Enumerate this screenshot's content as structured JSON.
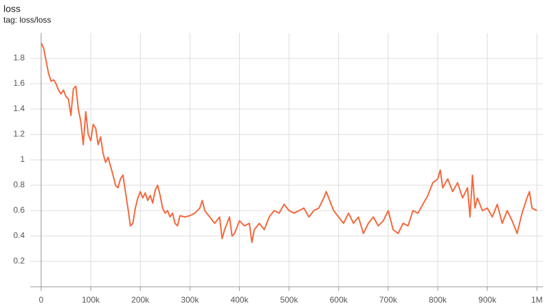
{
  "chart_data": {
    "type": "line",
    "title": "loss",
    "subtitle": "tag: loss/loss",
    "x": [
      0,
      5000,
      10000,
      15000,
      20000,
      25000,
      30000,
      35000,
      40000,
      45000,
      50000,
      55000,
      60000,
      65000,
      70000,
      75000,
      80000,
      85000,
      90000,
      95000,
      100000,
      105000,
      110000,
      115000,
      120000,
      125000,
      130000,
      135000,
      140000,
      145000,
      150000,
      155000,
      160000,
      165000,
      170000,
      175000,
      180000,
      185000,
      190000,
      195000,
      200000,
      205000,
      210000,
      215000,
      220000,
      225000,
      230000,
      235000,
      240000,
      245000,
      250000,
      255000,
      260000,
      265000,
      270000,
      275000,
      280000,
      290000,
      300000,
      310000,
      320000,
      325000,
      330000,
      340000,
      350000,
      360000,
      365000,
      370000,
      375000,
      380000,
      385000,
      390000,
      400000,
      410000,
      420000,
      425000,
      430000,
      440000,
      450000,
      460000,
      470000,
      480000,
      490000,
      500000,
      510000,
      520000,
      530000,
      540000,
      550000,
      560000,
      570000,
      575000,
      580000,
      590000,
      600000,
      610000,
      620000,
      630000,
      640000,
      650000,
      660000,
      670000,
      680000,
      690000,
      700000,
      710000,
      720000,
      730000,
      740000,
      750000,
      760000,
      770000,
      780000,
      790000,
      800000,
      805000,
      810000,
      820000,
      830000,
      840000,
      850000,
      860000,
      865000,
      870000,
      875000,
      880000,
      890000,
      900000,
      910000,
      920000,
      930000,
      940000,
      950000,
      960000,
      970000,
      980000,
      985000,
      990000,
      1000000
    ],
    "series": [
      {
        "color": "#f4683c",
        "values": [
          1.92,
          1.88,
          1.78,
          1.68,
          1.62,
          1.63,
          1.6,
          1.55,
          1.52,
          1.55,
          1.5,
          1.48,
          1.35,
          1.56,
          1.58,
          1.4,
          1.3,
          1.12,
          1.38,
          1.2,
          1.15,
          1.28,
          1.25,
          1.12,
          1.18,
          1.05,
          0.98,
          1.02,
          0.95,
          0.88,
          0.8,
          0.78,
          0.85,
          0.88,
          0.75,
          0.62,
          0.48,
          0.5,
          0.62,
          0.7,
          0.75,
          0.7,
          0.74,
          0.68,
          0.72,
          0.66,
          0.76,
          0.8,
          0.72,
          0.62,
          0.58,
          0.6,
          0.55,
          0.58,
          0.5,
          0.48,
          0.56,
          0.55,
          0.56,
          0.58,
          0.62,
          0.68,
          0.6,
          0.55,
          0.5,
          0.55,
          0.38,
          0.45,
          0.5,
          0.55,
          0.4,
          0.42,
          0.52,
          0.48,
          0.5,
          0.35,
          0.45,
          0.5,
          0.45,
          0.55,
          0.6,
          0.58,
          0.65,
          0.6,
          0.58,
          0.6,
          0.62,
          0.55,
          0.6,
          0.62,
          0.7,
          0.75,
          0.7,
          0.6,
          0.55,
          0.5,
          0.58,
          0.5,
          0.55,
          0.42,
          0.5,
          0.55,
          0.48,
          0.52,
          0.6,
          0.45,
          0.42,
          0.5,
          0.48,
          0.6,
          0.58,
          0.65,
          0.72,
          0.82,
          0.85,
          0.92,
          0.78,
          0.85,
          0.75,
          0.82,
          0.7,
          0.78,
          0.55,
          0.88,
          0.62,
          0.7,
          0.6,
          0.62,
          0.55,
          0.65,
          0.5,
          0.6,
          0.52,
          0.42,
          0.58,
          0.7,
          0.75,
          0.62,
          0.6
        ]
      }
    ],
    "xlim": [
      -22000,
      1012000
    ],
    "xticks": [
      0,
      {
        "value": 100000,
        "label": "100k"
      },
      {
        "value": 200000,
        "label": "200k"
      },
      {
        "value": 300000,
        "label": "300k"
      },
      {
        "value": 400000,
        "label": "400k"
      },
      {
        "value": 500000,
        "label": "500k"
      },
      {
        "value": 600000,
        "label": "600k"
      },
      {
        "value": 700000,
        "label": "700k"
      },
      {
        "value": 800000,
        "label": "800k"
      },
      {
        "value": 900000,
        "label": "900k"
      },
      {
        "value": 1000000,
        "label": "1M"
      }
    ],
    "ylim": [
      0,
      2.0
    ],
    "yticks": [
      0.2,
      0.4,
      0.6,
      0.8,
      1,
      1.2,
      1.4,
      1.6,
      1.8
    ],
    "grid": true
  }
}
